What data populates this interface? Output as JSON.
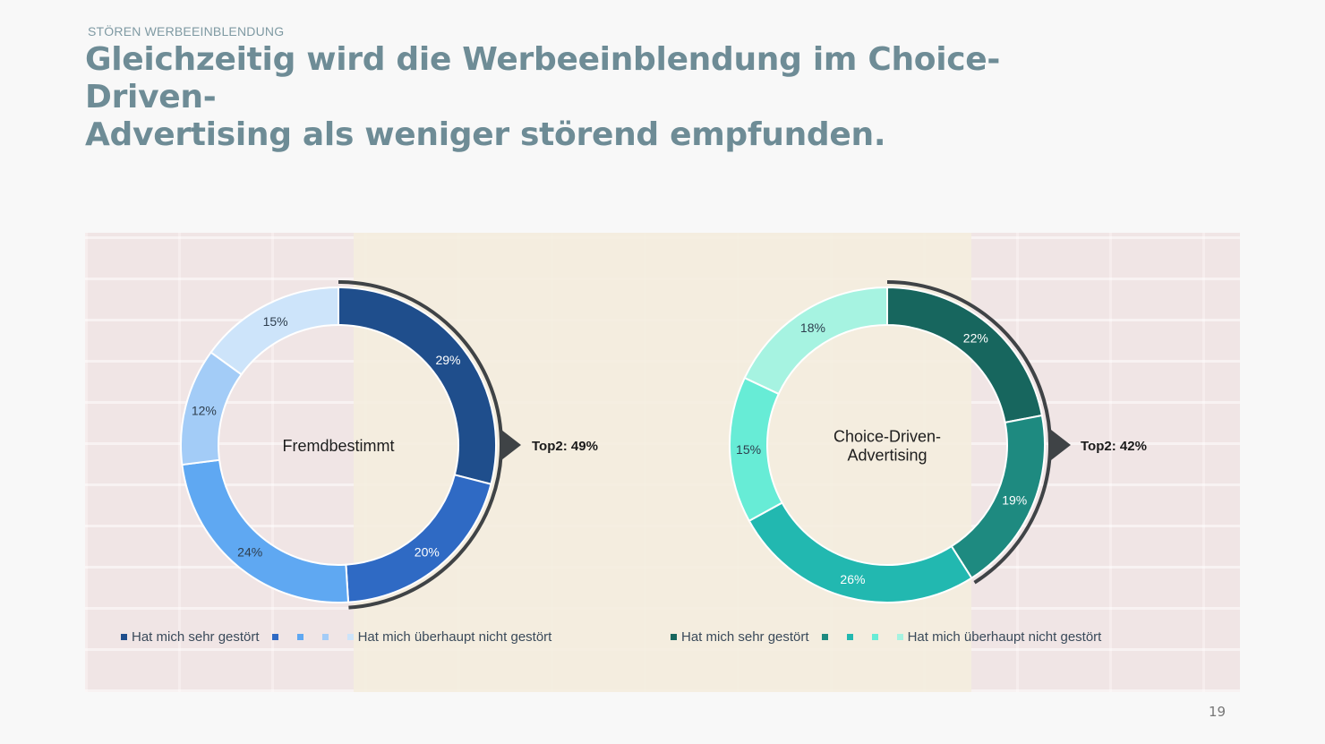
{
  "header": {
    "kicker": "STÖREN WERBEEINBLENDUNG",
    "title_line1": "Gleichzeitig wird die Werbeeinblendung im Choice-Driven-",
    "title_line2": "Advertising als weniger störend empfunden."
  },
  "page_number": "19",
  "chart_data": [
    {
      "type": "pie",
      "center_label": [
        "Fremdbestimmt"
      ],
      "values": [
        29,
        20,
        24,
        12,
        15
      ],
      "value_labels": [
        "29%",
        "20%",
        "24%",
        "12%",
        "15%"
      ],
      "colors": [
        "#1f4e8c",
        "#2f6ac4",
        "#5fa8f2",
        "#a3ccf7",
        "#cde4fa"
      ],
      "top2_label": "Top2: 49%",
      "legend": {
        "first": "Hat mich sehr gestört",
        "last": "Hat mich überhaupt nicht gestört"
      }
    },
    {
      "type": "pie",
      "center_label": [
        "Choice-Driven-",
        "Advertising"
      ],
      "values": [
        22,
        19,
        26,
        15,
        18
      ],
      "value_labels": [
        "22%",
        "19%",
        "26%",
        "15%",
        "18%"
      ],
      "colors": [
        "#17665e",
        "#1e8a80",
        "#22b8b0",
        "#67ecd6",
        "#a6f3e1"
      ],
      "top2_label": "Top2: 42%",
      "legend": {
        "first": "Hat mich sehr gestört",
        "last": "Hat mich überhaupt nicht gestört"
      }
    }
  ]
}
